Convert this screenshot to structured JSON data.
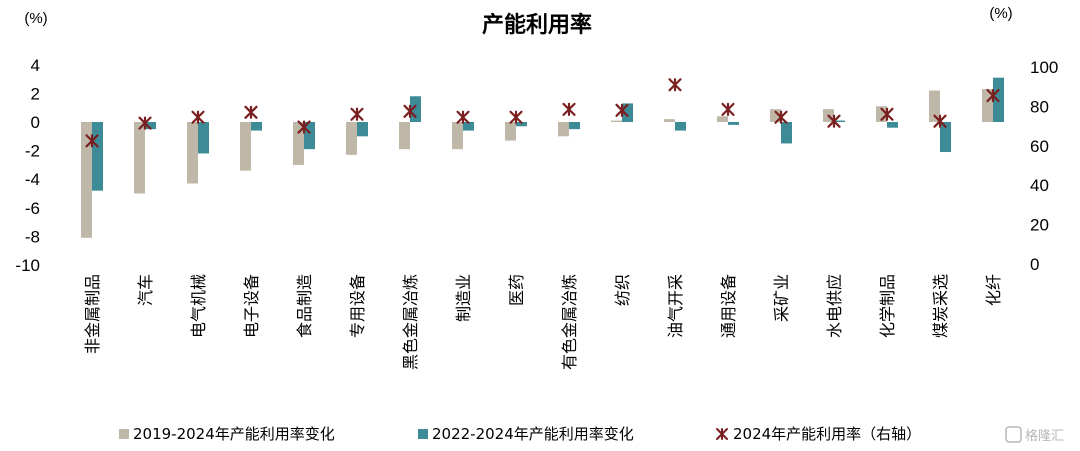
{
  "chart_data": {
    "type": "bar",
    "title": "产能利用率",
    "y_left_unit": "(%)",
    "y_right_unit": "(%)",
    "y_left_ticks": [
      "4",
      "2",
      "0",
      "-2",
      "-4",
      "-6",
      "-8",
      "-10"
    ],
    "y_right_ticks": [
      "100",
      "80",
      "60",
      "40",
      "20",
      "0"
    ],
    "ylim_left": [
      -10,
      4
    ],
    "ylim_right": [
      0,
      100
    ],
    "categories": [
      "非金属制品",
      "汽车",
      "电气机械",
      "电子设备",
      "食品制造",
      "专用设备",
      "黑色金属冶炼",
      "制造业",
      "医药",
      "有色金属冶炼",
      "纺织",
      "油气开采",
      "通用设备",
      "采矿业",
      "水电供应",
      "化学制品",
      "煤炭采选",
      "化纤"
    ],
    "series": [
      {
        "name": "2019-2024年产能利用率变化",
        "type": "bar",
        "axis": "left",
        "color": "#bfb8a9",
        "values": [
          -8.1,
          -5.0,
          -4.3,
          -3.4,
          -3.0,
          -2.3,
          -1.9,
          -1.9,
          -1.3,
          -1.0,
          0.1,
          0.2,
          0.4,
          0.9,
          0.9,
          1.1,
          2.2,
          2.3
        ]
      },
      {
        "name": "2022-2024年产能利用率变化",
        "type": "bar",
        "axis": "left",
        "color": "#3d8b96",
        "values": [
          -4.8,
          -0.5,
          -2.2,
          -0.6,
          -1.9,
          -1.0,
          1.8,
          -0.6,
          -0.3,
          -0.5,
          1.3,
          -0.6,
          -0.2,
          -1.5,
          0.1,
          -0.4,
          -2.1,
          3.1
        ]
      },
      {
        "name": "2024年产能利用率（右轴）",
        "type": "scatter",
        "axis": "right",
        "color": "#7a1f1f",
        "values": [
          62.5,
          71.5,
          74.5,
          77.0,
          69.5,
          76.0,
          77.5,
          74.5,
          74.5,
          78.5,
          78.0,
          91.0,
          78.5,
          74.5,
          72.5,
          76.0,
          72.5,
          85.5
        ]
      }
    ],
    "legend_position": "bottom",
    "grid": false
  },
  "watermark": "格隆汇"
}
